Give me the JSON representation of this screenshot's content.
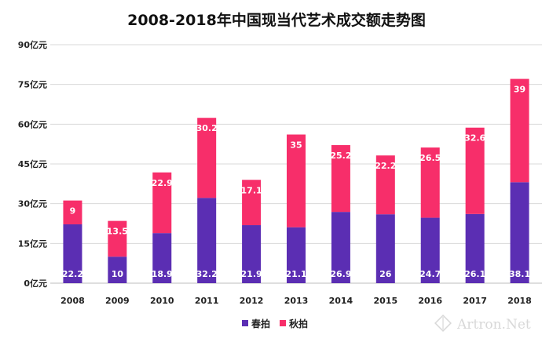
{
  "chart_data": {
    "type": "bar",
    "stacked": true,
    "title": "2008-2018年中国现当代艺术成交额走势图",
    "categories": [
      "2008",
      "2009",
      "2010",
      "2011",
      "2012",
      "2013",
      "2014",
      "2015",
      "2016",
      "2017",
      "2018"
    ],
    "series": [
      {
        "name": "春拍",
        "color": "#5b2eb3",
        "values": [
          22.2,
          10,
          18.9,
          32.2,
          21.9,
          21.1,
          26.9,
          26,
          24.7,
          26.1,
          38.1
        ]
      },
      {
        "name": "秋拍",
        "color": "#f72e6a",
        "values": [
          9,
          13.5,
          22.9,
          30.2,
          17.1,
          35,
          25.2,
          22.2,
          26.5,
          32.6,
          39
        ]
      }
    ],
    "ylim": [
      0,
      90
    ],
    "yticks": [
      "0亿元",
      "15亿元",
      "30亿元",
      "45亿元",
      "60亿元",
      "75亿元",
      "90亿元"
    ],
    "ytick_values": [
      0,
      15,
      30,
      45,
      60,
      75,
      90
    ],
    "grid": true,
    "legend_position": "bottom"
  },
  "watermark": "Artron.Net"
}
